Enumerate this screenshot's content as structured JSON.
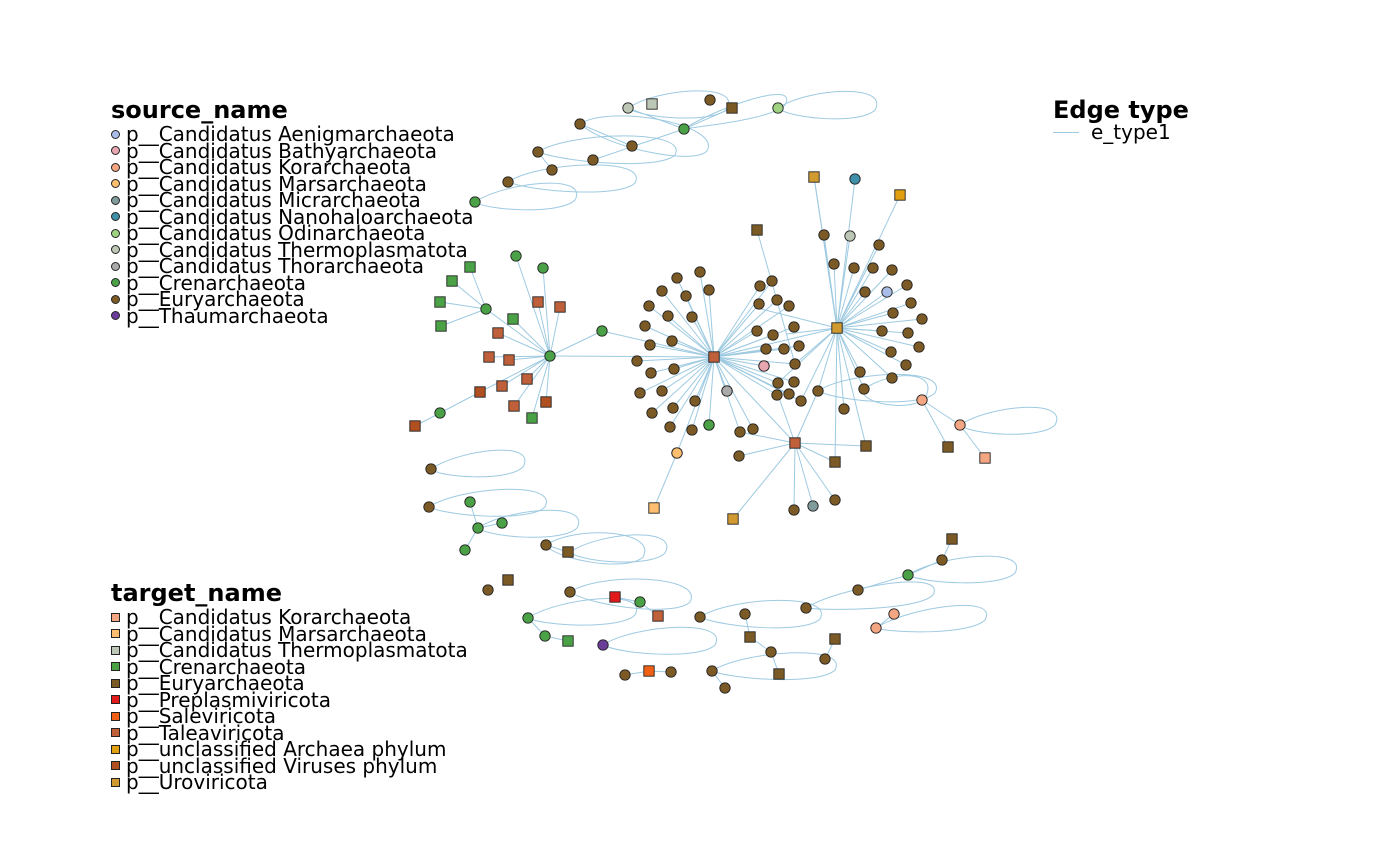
{
  "legends": {
    "source": {
      "title": "source_name",
      "items": [
        {
          "label": "p__Candidatus Aenigmarchaeota",
          "color": "#a9bde8"
        },
        {
          "label": "p__Candidatus Bathyarchaeota",
          "color": "#e8a7b0"
        },
        {
          "label": "p__Candidatus Korarchaeota",
          "color": "#f4a582"
        },
        {
          "label": "p__Candidatus Marsarchaeota",
          "color": "#fdbf6f"
        },
        {
          "label": "p__Candidatus Micrarchaeota",
          "color": "#7f9b9b"
        },
        {
          "label": "p__Candidatus Nanohaloarchaeota",
          "color": "#3f8fa8"
        },
        {
          "label": "p__Candidatus Odinarchaeota",
          "color": "#9fd382"
        },
        {
          "label": "p__Candidatus Thermoplasmatota",
          "color": "#bcc7b5"
        },
        {
          "label": "p__Candidatus Thorarchaeota",
          "color": "#aaaaaa"
        },
        {
          "label": "p__Crenarchaeota",
          "color": "#4aa146"
        },
        {
          "label": "p__Euryarchaeota",
          "color": "#7b5a26"
        },
        {
          "label": "p__Thaumarchaeota",
          "color": "#6a3d9a"
        }
      ]
    },
    "target": {
      "title": "target_name",
      "items": [
        {
          "label": "p__Candidatus Korarchaeota",
          "color": "#f4a582"
        },
        {
          "label": "p__Candidatus Marsarchaeota",
          "color": "#fdbf6f"
        },
        {
          "label": "p__Candidatus Thermoplasmatota",
          "color": "#bcc7b5"
        },
        {
          "label": "p__Crenarchaeota",
          "color": "#4aa146"
        },
        {
          "label": "p__Euryarchaeota",
          "color": "#7b5a26"
        },
        {
          "label": "p__Preplasmiviricota",
          "color": "#e31a1c"
        },
        {
          "label": "p__Saleviricota",
          "color": "#f06014"
        },
        {
          "label": "p__Taleaviricota",
          "color": "#c0603a"
        },
        {
          "label": "p__unclassified Archaea phylum",
          "color": "#e0a010"
        },
        {
          "label": "p__unclassified Viruses phylum",
          "color": "#b05020"
        },
        {
          "label": "p__Uroviricota",
          "color": "#d09a30"
        }
      ]
    },
    "edge": {
      "title": "Edge type",
      "items": [
        {
          "label": "e_type1",
          "color": "#9ecae1"
        }
      ]
    }
  },
  "edge_color": "#9ecae1"
}
